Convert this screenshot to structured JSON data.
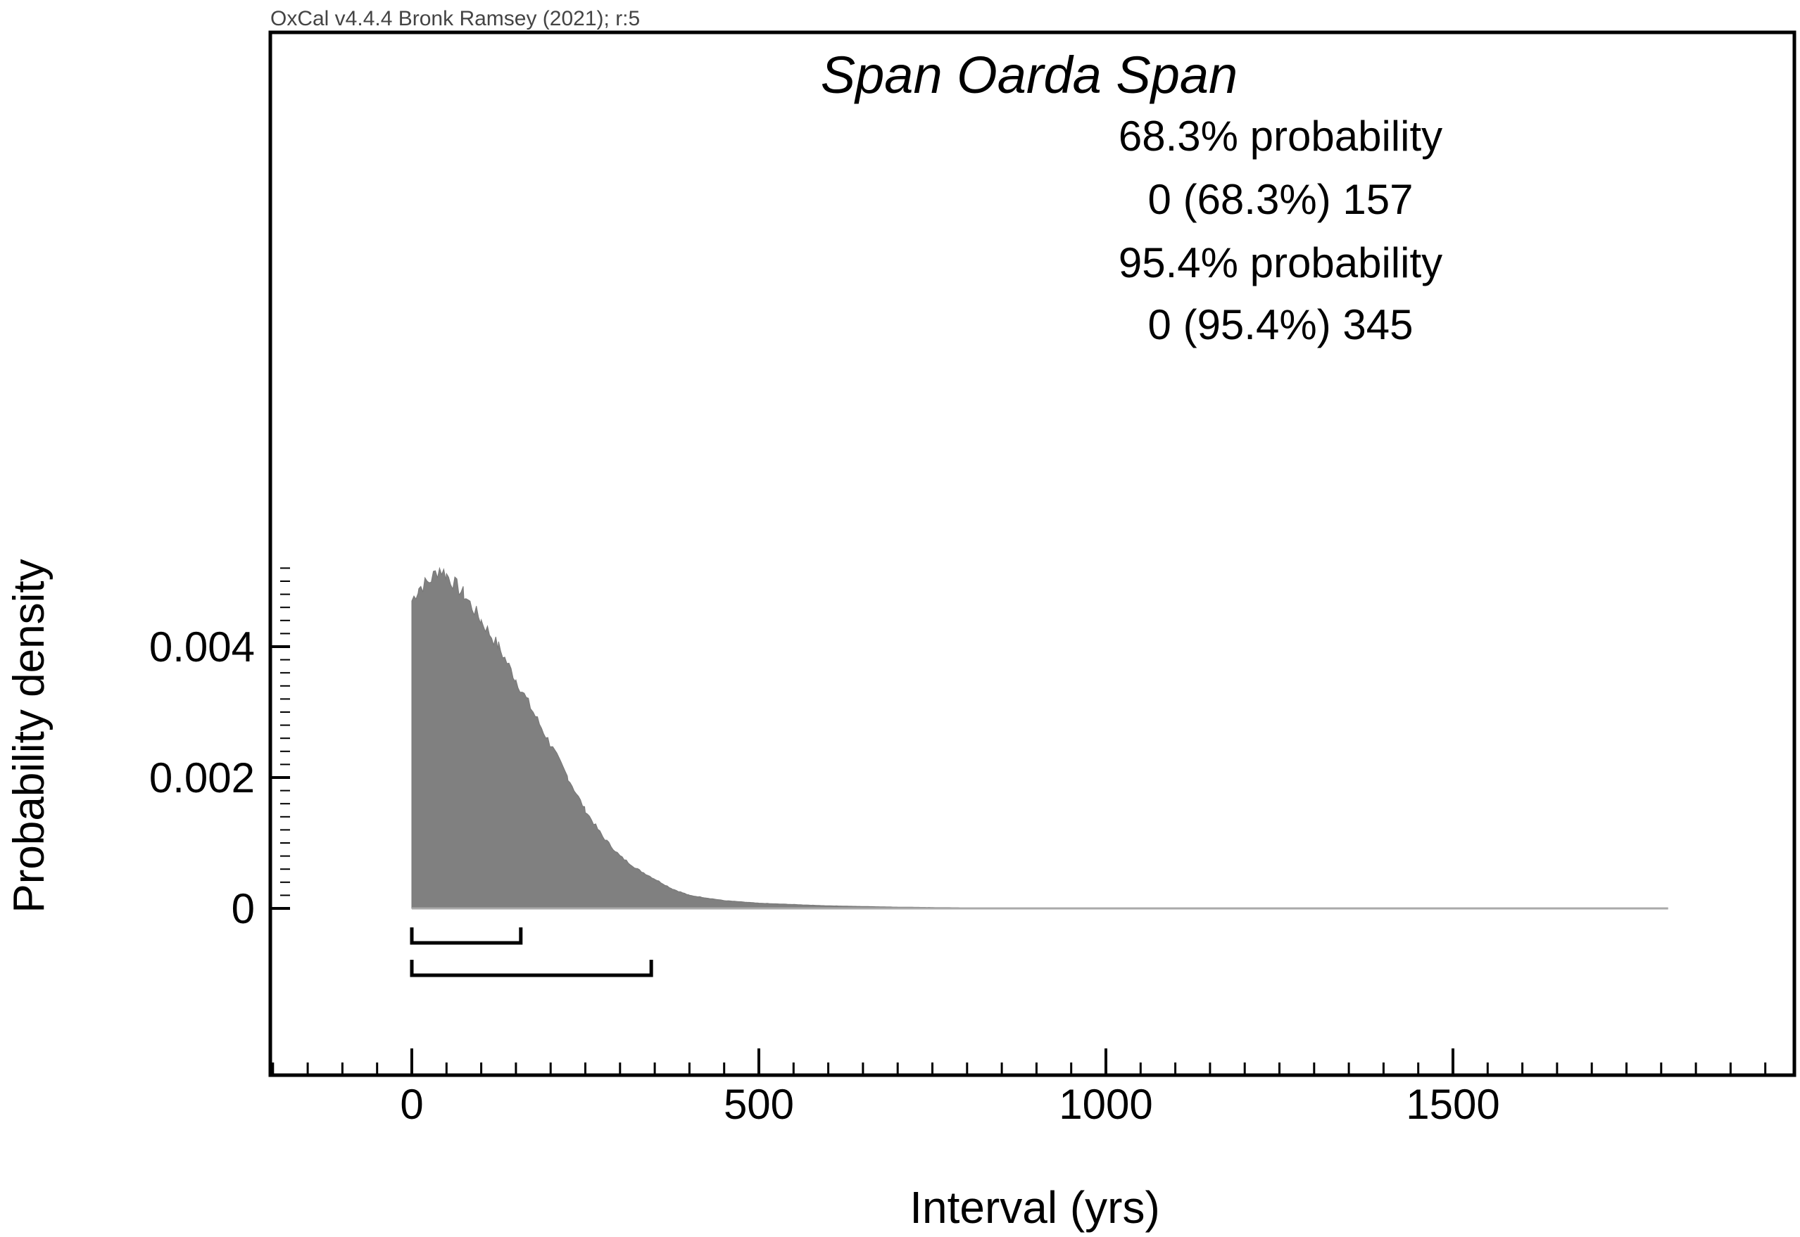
{
  "header": {
    "software_credit": "OxCal v4.4.4 Bronk Ramsey (2021); r:5"
  },
  "chart_data": {
    "type": "area",
    "title": "Span Oarda Span",
    "xlabel": "Interval (yrs)",
    "ylabel": "Probability density",
    "xlim": [
      -204,
      1992
    ],
    "ylim": [
      0,
      0.0055
    ],
    "x_ticks": [
      0,
      500,
      1000,
      1500
    ],
    "x_tick_labels": [
      "0",
      "500",
      "1000",
      "1500"
    ],
    "y_ticks": [
      0,
      0.002,
      0.004
    ],
    "y_tick_labels": [
      "0",
      "0.002",
      "0.004"
    ],
    "grid": false,
    "fill_color": "#808080",
    "series": [
      {
        "name": "Span Oarda Span",
        "x": [
          0,
          10,
          25,
          40,
          50,
          75,
          100,
          125,
          150,
          175,
          200,
          225,
          250,
          275,
          300,
          325,
          350,
          375,
          400,
          450,
          500,
          600,
          700,
          800,
          1000,
          1500,
          1810
        ],
        "y": [
          0.0047,
          0.0049,
          0.005,
          0.0052,
          0.0051,
          0.0048,
          0.0044,
          0.004,
          0.0035,
          0.003,
          0.0025,
          0.002,
          0.0015,
          0.0011,
          0.0008,
          0.0006,
          0.00045,
          0.0003,
          0.0002,
          0.00012,
          8e-05,
          4e-05,
          2e-05,
          1e-05,
          5e-06,
          2e-06,
          0
        ]
      }
    ],
    "annotations": [
      "68.3% probability",
      "0 (68.3%) 157",
      "95.4% probability",
      "0 (95.4%) 345"
    ],
    "ranges": [
      {
        "level": "68.3%",
        "from": 0,
        "to": 157
      },
      {
        "level": "95.4%",
        "from": 0,
        "to": 345
      }
    ]
  }
}
